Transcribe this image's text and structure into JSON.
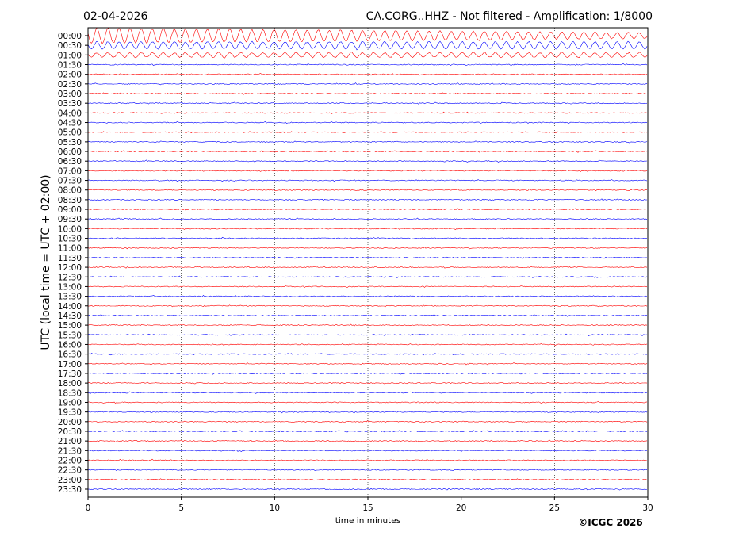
{
  "chart_data": {
    "type": "helicorder",
    "title_left": "02-04-2026",
    "title_right": "CA.CORG..HHZ - Not filtered - Amplification: 1/8000",
    "y_label": "UTC (local time = UTC + 02:00)",
    "x_label": "time in minutes",
    "credit": "©ICGC 2026",
    "rows": [
      "00:00",
      "00:30",
      "01:00",
      "01:30",
      "02:00",
      "02:30",
      "03:00",
      "03:30",
      "04:00",
      "04:30",
      "05:00",
      "05:30",
      "06:00",
      "06:30",
      "07:00",
      "07:30",
      "08:00",
      "08:30",
      "09:00",
      "09:30",
      "10:00",
      "10:30",
      "11:00",
      "11:30",
      "12:00",
      "12:30",
      "13:00",
      "13:30",
      "14:00",
      "14:30",
      "15:00",
      "15:30",
      "16:00",
      "16:30",
      "17:00",
      "17:30",
      "18:00",
      "18:30",
      "19:00",
      "19:30",
      "20:00",
      "20:30",
      "21:00",
      "21:30",
      "22:00",
      "22:30",
      "23:00",
      "23:30"
    ],
    "colors": [
      "#ff0000",
      "#0000ff"
    ],
    "xlim": [
      0,
      30
    ],
    "xticks": [
      0,
      5,
      10,
      15,
      20,
      25,
      30
    ],
    "grid": true
  }
}
